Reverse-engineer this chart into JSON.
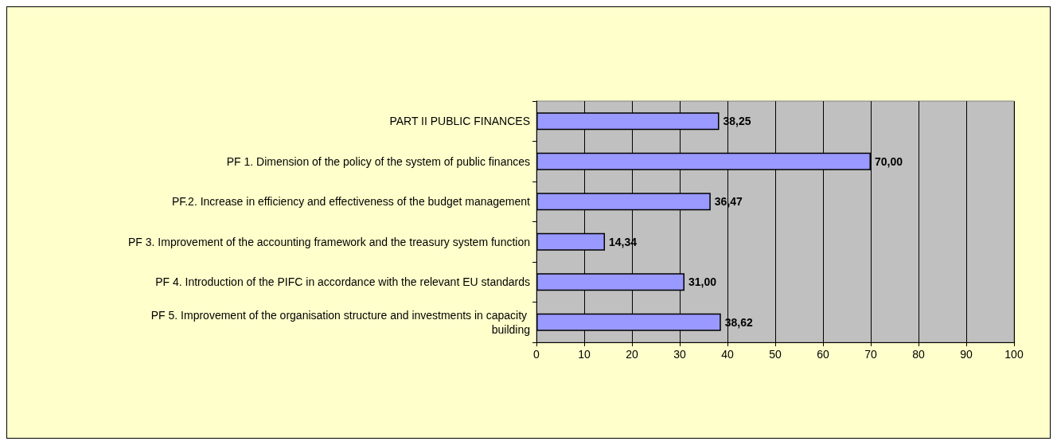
{
  "chart_data": {
    "type": "bar",
    "orientation": "horizontal",
    "categories": [
      "PART II PUBLIC FINANCES",
      "PF 1. Dimension of the policy of the system of public finances",
      "PF.2. Increase in efficiency and effectiveness of the budget management",
      "PF 3. Improvement of the accounting framework and the treasury system function",
      "PF 4. Introduction of the PIFC in accordance with the relevant EU standards",
      "PF 5. Improvement of the organisation structure and investments in capacity building"
    ],
    "values": [
      38.25,
      70.0,
      36.47,
      14.34,
      31.0,
      38.62
    ],
    "value_labels": [
      "38,25",
      "70,00",
      "36,47",
      "14,34",
      "31,00",
      "38,62"
    ],
    "color": "#9999ff",
    "xlim": [
      0,
      100
    ],
    "xticks": [
      0,
      10,
      20,
      30,
      40,
      50,
      60,
      70,
      80,
      90,
      100
    ],
    "grid": "x"
  }
}
